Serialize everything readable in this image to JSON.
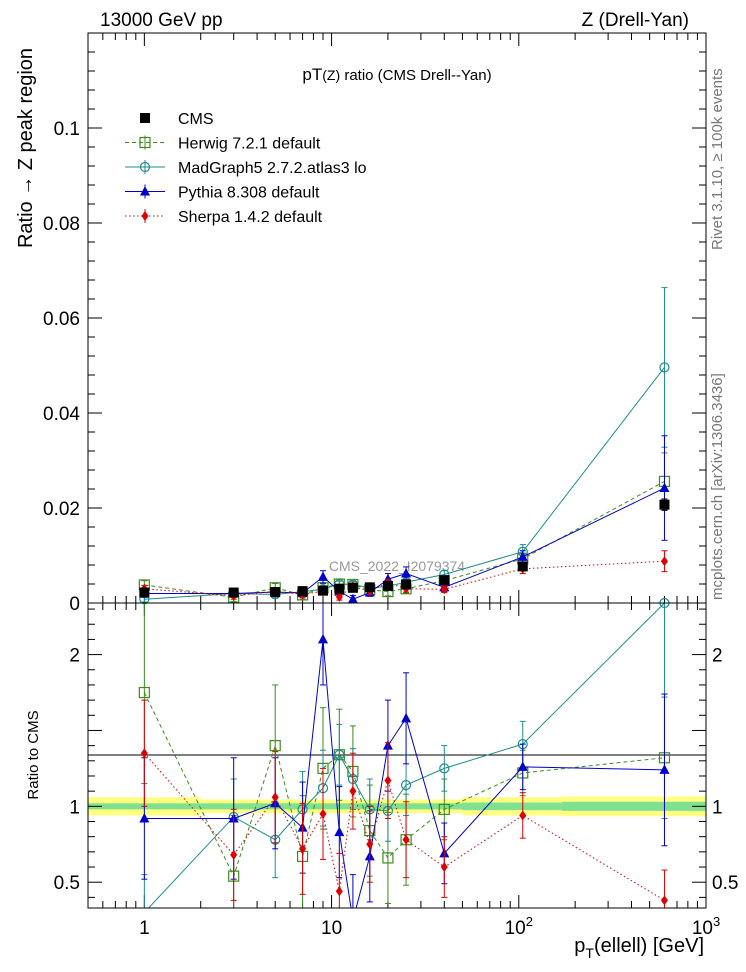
{
  "header": {
    "energy_label": "13000 GeV pp",
    "process_label": "Z (Drell-Yan)"
  },
  "side_notes": {
    "rivet": "Rivet 3.1.10, ≥ 100k events",
    "mcplots": "mcplots.cern.ch [arXiv:1306.3436]"
  },
  "chart_data": [
    {
      "type": "line",
      "panel": "main",
      "title": "pT(Z) ratio (CMS Drell--Yan)",
      "title_parts": [
        "pT",
        "(Z)",
        " ratio (CMS Drell--Yan)"
      ],
      "watermark": "CMS_2022_I2079374",
      "ylabel": "Ratio → Z peak region",
      "xlabel_parts": [
        "p",
        "T",
        "(ellell) [GeV]"
      ],
      "xscale": "log",
      "xlim": [
        0.5,
        1000
      ],
      "ylim": [
        0,
        0.12
      ],
      "yticks": [
        0,
        0.02,
        0.04,
        0.06,
        0.08,
        0.1
      ],
      "ytick_labels": [
        "0",
        "0.02",
        "0.04",
        "0.06",
        "0.08",
        "0.1"
      ],
      "legend_position": "top-left",
      "x": [
        1,
        3,
        5,
        7,
        9,
        11,
        13,
        16,
        20,
        25,
        40,
        105,
        600
      ],
      "series": [
        {
          "name": "CMS",
          "color": "#000000",
          "marker": "filled-square",
          "line": "none",
          "values": [
            0.0022,
            0.0022,
            0.0023,
            0.0025,
            0.0026,
            0.003,
            0.0032,
            0.0033,
            0.0036,
            0.0039,
            0.0048,
            0.0077,
            0.0207
          ],
          "errors": [
            0.0003,
            0.0003,
            0.0003,
            0.0003,
            0.0003,
            0.0003,
            0.0003,
            0.0003,
            0.0003,
            0.0003,
            0.0004,
            0.0006,
            0.0012
          ]
        },
        {
          "name": "Herwig 7.2.1 default",
          "color": "#3c8c1e",
          "marker": "open-square",
          "line": "dashed",
          "values": [
            0.0038,
            0.0012,
            0.0032,
            0.0017,
            0.0032,
            0.004,
            0.0039,
            0.0028,
            0.0024,
            0.003,
            0.0047,
            0.0093,
            0.0256
          ],
          "errors": [
            0.0009,
            0.0009,
            0.0009,
            0.0009,
            0.0009,
            0.0009,
            0.0009,
            0.0009,
            0.0009,
            0.0009,
            0.001,
            0.0012,
            0.006
          ]
        },
        {
          "name": "MadGraph5 2.7.2.atlas3 lo",
          "color": "#1e8c8c",
          "marker": "open-circle",
          "line": "solid",
          "values": [
            0.0008,
            0.002,
            0.0018,
            0.0024,
            0.0029,
            0.004,
            0.0039,
            0.0032,
            0.0035,
            0.0044,
            0.006,
            0.0108,
            0.0496
          ],
          "errors": [
            0.0006,
            0.0006,
            0.0006,
            0.0006,
            0.0006,
            0.0006,
            0.0006,
            0.0006,
            0.0006,
            0.0006,
            0.0008,
            0.0015,
            0.0168
          ]
        },
        {
          "name": "Pythia 8.308 default",
          "color": "#0000cc",
          "marker": "filled-triangle",
          "line": "solid",
          "values": [
            0.002,
            0.002,
            0.0023,
            0.0021,
            0.0055,
            0.0025,
            0.0008,
            0.0022,
            0.005,
            0.0062,
            0.0033,
            0.0097,
            0.0242
          ],
          "errors": [
            0.0008,
            0.0008,
            0.0008,
            0.0008,
            0.0013,
            0.0008,
            0.0008,
            0.0008,
            0.0012,
            0.0014,
            0.0009,
            0.0013,
            0.011
          ]
        },
        {
          "name": "Sherpa 1.4.2 default",
          "color": "#dd0000",
          "marker": "filled-diamond",
          "line": "dotted",
          "values": [
            0.003,
            0.0015,
            0.0025,
            0.0018,
            0.0025,
            0.0013,
            0.0035,
            0.0025,
            0.0042,
            0.003,
            0.0029,
            0.0072,
            0.0088
          ],
          "errors": [
            0.0007,
            0.0007,
            0.0007,
            0.0007,
            0.0007,
            0.0007,
            0.0007,
            0.0007,
            0.0007,
            0.0007,
            0.0007,
            0.001,
            0.0022
          ]
        }
      ]
    },
    {
      "type": "line",
      "panel": "ratio",
      "ylabel": "Ratio to CMS",
      "xscale": "log",
      "xlim": [
        0.5,
        1000
      ],
      "ylim": [
        0.33,
        2.34
      ],
      "yticks": [
        0.5,
        1,
        2
      ],
      "ytick_labels": [
        "0.5",
        "1",
        "2"
      ],
      "xticks": [
        1,
        10,
        100,
        1000
      ],
      "xtick_labels": [
        "1",
        "10",
        "10^2",
        "10^3"
      ],
      "bands": [
        {
          "name": "stat",
          "color": "#7fe090",
          "edges": [
            0.5,
            2,
            50,
            170,
            1000
          ],
          "half_widths": [
            0.02,
            0.02,
            0.025,
            0.03
          ]
        },
        {
          "name": "total",
          "color": "#ffff80",
          "edges": [
            0.5,
            2,
            50,
            170,
            1000
          ],
          "half_widths": [
            0.06,
            0.045,
            0.06,
            0.065
          ]
        }
      ],
      "x": [
        1,
        3,
        5,
        7,
        9,
        11,
        13,
        16,
        20,
        25,
        40,
        105,
        600
      ],
      "series": [
        {
          "name": "Herwig 7.2.1 default",
          "values": [
            1.75,
            0.54,
            1.4,
            0.67,
            1.25,
            1.34,
            1.23,
            0.84,
            0.66,
            0.78,
            0.98,
            1.22,
            1.32
          ],
          "errors": [
            0.6,
            0.4,
            0.4,
            0.4,
            0.4,
            0.3,
            0.3,
            0.3,
            0.3,
            0.3,
            0.2,
            0.15,
            0.4
          ]
        },
        {
          "name": "MadGraph5 2.7.2.atlas3 lo",
          "values": [
            0.3,
            0.93,
            0.78,
            0.98,
            1.12,
            1.34,
            1.18,
            0.98,
            0.97,
            1.14,
            1.25,
            1.41,
            2.34
          ],
          "errors": [
            0.25,
            0.25,
            0.25,
            0.25,
            0.25,
            0.2,
            0.2,
            0.2,
            0.2,
            0.2,
            0.15,
            0.15,
            0.6
          ]
        },
        {
          "name": "Pythia 8.308 default",
          "values": [
            0.92,
            0.92,
            1.02,
            0.86,
            2.1,
            0.83,
            0.25,
            0.67,
            1.4,
            1.58,
            0.69,
            1.26,
            1.24
          ],
          "errors": [
            0.4,
            0.4,
            0.3,
            0.3,
            0.3,
            0.3,
            0.3,
            0.3,
            0.3,
            0.3,
            0.2,
            0.15,
            0.5
          ]
        },
        {
          "name": "Sherpa 1.4.2 default",
          "values": [
            1.35,
            0.68,
            1.06,
            0.72,
            0.95,
            0.44,
            1.1,
            0.75,
            1.17,
            0.78,
            0.6,
            0.94,
            0.38
          ],
          "errors": [
            0.35,
            0.3,
            0.3,
            0.3,
            0.3,
            0.25,
            0.25,
            0.25,
            0.25,
            0.25,
            0.2,
            0.15,
            0.2
          ]
        }
      ]
    }
  ]
}
